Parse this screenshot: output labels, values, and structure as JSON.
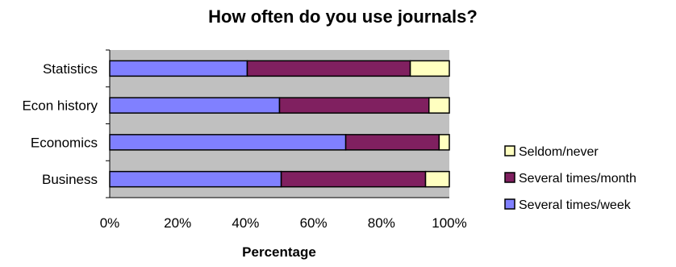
{
  "chart_data": {
    "type": "bar",
    "orientation": "horizontal",
    "stacked": true,
    "title": "How often do you use journals?",
    "xlabel": "Percentage",
    "ylabel": "",
    "xlim": [
      0,
      100
    ],
    "x_ticks": [
      "0%",
      "20%",
      "40%",
      "60%",
      "80%",
      "100%"
    ],
    "categories": [
      "Statistics",
      "Econ history",
      "Economics",
      "Business"
    ],
    "series": [
      {
        "name": "Several times/week",
        "color": "#8080FF",
        "values": [
          40.5,
          50,
          69.5,
          50.5
        ]
      },
      {
        "name": "Several times/month",
        "color": "#802060",
        "values": [
          48,
          44,
          27.5,
          42.5
        ]
      },
      {
        "name": "Seldom/never",
        "color": "#FFFFC0",
        "values": [
          11.5,
          6,
          3,
          7
        ]
      }
    ],
    "legend": {
      "position": "right",
      "order": [
        "Seldom/never",
        "Several times/month",
        "Several times/week"
      ]
    },
    "plot_background": "#C0C0C0",
    "grid": false
  }
}
